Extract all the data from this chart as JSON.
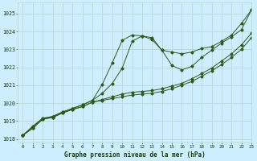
{
  "title": "Graphe pression niveau de la mer (hPa)",
  "bg_color": "#cceeff",
  "grid_color": "#b8d8d8",
  "line_color": "#2d5a1b",
  "xlim": [
    -0.5,
    23
  ],
  "ylim": [
    1017.8,
    1025.6
  ],
  "yticks": [
    1018,
    1019,
    1020,
    1021,
    1022,
    1023,
    1024,
    1025
  ],
  "xticks": [
    0,
    1,
    2,
    3,
    4,
    5,
    6,
    7,
    8,
    9,
    10,
    11,
    12,
    13,
    14,
    15,
    16,
    17,
    18,
    19,
    20,
    21,
    22,
    23
  ],
  "series": [
    [
      1018.2,
      1018.6,
      1019.1,
      1019.2,
      1019.45,
      1019.65,
      1019.8,
      1020.05,
      1020.15,
      1020.25,
      1020.35,
      1020.45,
      1020.5,
      1020.55,
      1020.65,
      1020.8,
      1021.0,
      1021.2,
      1021.5,
      1021.8,
      1022.15,
      1022.55,
      1023.0,
      1023.65
    ],
    [
      1018.2,
      1018.6,
      1019.1,
      1019.2,
      1019.45,
      1019.65,
      1019.8,
      1020.05,
      1020.2,
      1020.35,
      1020.5,
      1020.6,
      1020.65,
      1020.7,
      1020.8,
      1020.95,
      1021.1,
      1021.35,
      1021.65,
      1021.95,
      1022.35,
      1022.75,
      1023.25,
      1023.9
    ],
    [
      1018.2,
      1018.7,
      1019.15,
      1019.25,
      1019.5,
      1019.7,
      1019.9,
      1020.15,
      1020.55,
      1021.1,
      1021.95,
      1023.45,
      1023.75,
      1023.65,
      1022.95,
      1022.1,
      1021.85,
      1022.05,
      1022.55,
      1022.95,
      1023.35,
      1023.7,
      1024.1,
      1025.2
    ],
    [
      1018.2,
      1018.7,
      1019.15,
      1019.25,
      1019.5,
      1019.7,
      1019.9,
      1020.15,
      1021.05,
      1022.25,
      1023.5,
      1023.8,
      1023.75,
      1023.55,
      1022.95,
      1022.85,
      1022.75,
      1022.85,
      1023.05,
      1023.15,
      1023.45,
      1023.8,
      1024.45,
      1025.2
    ]
  ],
  "figsize": [
    3.2,
    2.0
  ],
  "dpi": 100
}
